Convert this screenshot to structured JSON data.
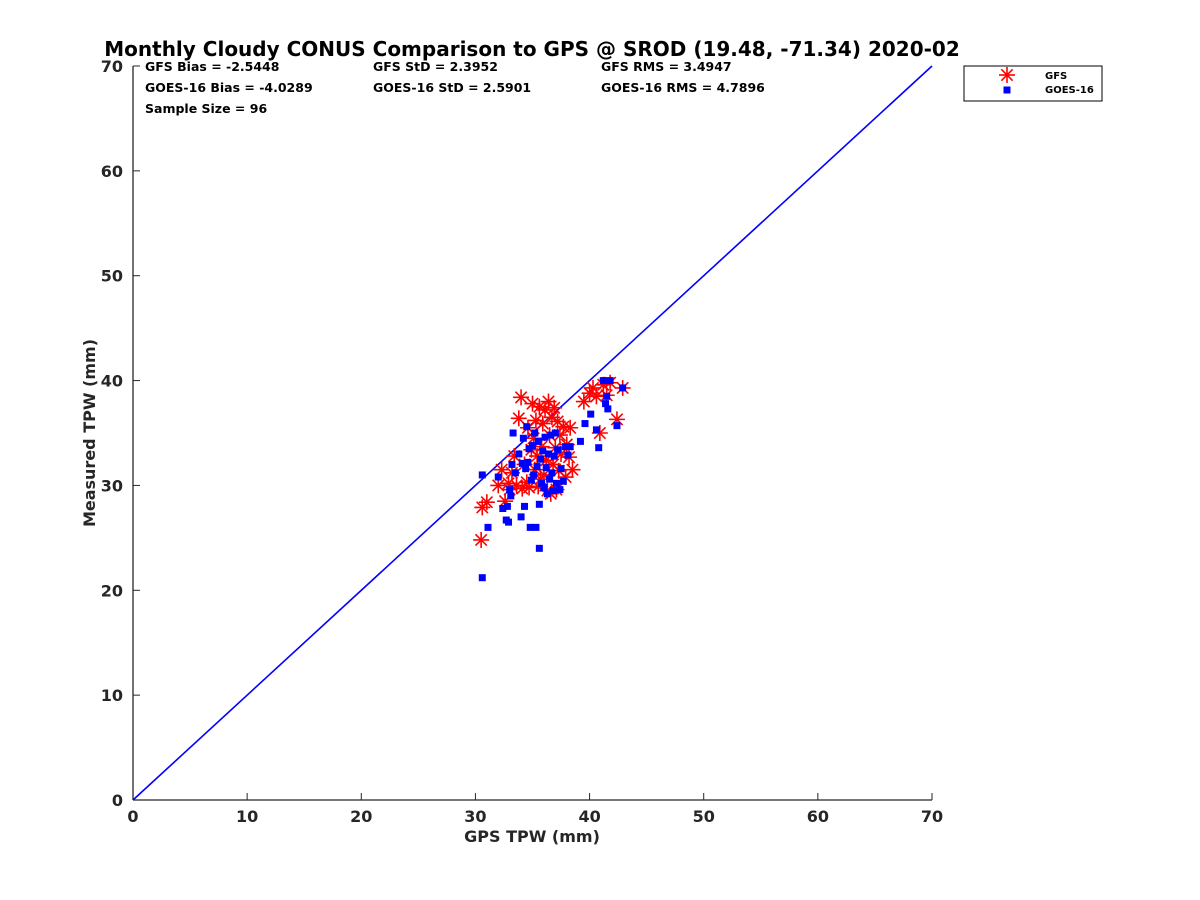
{
  "chart_data": {
    "type": "scatter",
    "title": "Monthly Cloudy CONUS Comparison to GPS @ SROD (19.48, -71.34) 2020-02",
    "xlabel": "GPS TPW (mm)",
    "ylabel": "Measured TPW (mm)",
    "xlim": [
      0,
      70
    ],
    "ylim": [
      0,
      70
    ],
    "xticks": [
      0,
      10,
      20,
      30,
      40,
      50,
      60,
      70
    ],
    "yticks": [
      0,
      10,
      20,
      30,
      40,
      50,
      60,
      70
    ],
    "grid": false,
    "legend_position": "outside-top-right",
    "stats": [
      [
        "GFS Bias = -2.5448",
        "GFS StD = 2.3952",
        "GFS RMS = 3.4947"
      ],
      [
        "GOES-16 Bias = -4.0289",
        "GOES-16 StD = 2.5901",
        "GOES-16 RMS = 4.7896"
      ],
      [
        "Sample Size = 96"
      ]
    ],
    "reference_line": {
      "x": [
        0,
        70
      ],
      "y": [
        0,
        70
      ],
      "color": "#0000ff"
    },
    "series": [
      {
        "name": "GFS",
        "marker": "asterisk",
        "color": "#ff0000",
        "points": [
          [
            30.5,
            24.8
          ],
          [
            30.6,
            27.9
          ],
          [
            31.0,
            28.4
          ],
          [
            32.0,
            30.0
          ],
          [
            32.3,
            31.5
          ],
          [
            32.6,
            28.5
          ],
          [
            32.9,
            30.2
          ],
          [
            33.0,
            29.6
          ],
          [
            33.2,
            31.2
          ],
          [
            33.4,
            32.8
          ],
          [
            33.6,
            30.0
          ],
          [
            33.8,
            36.4
          ],
          [
            34.0,
            38.4
          ],
          [
            34.1,
            29.7
          ],
          [
            34.3,
            32.0
          ],
          [
            34.5,
            30.3
          ],
          [
            34.6,
            35.5
          ],
          [
            34.7,
            29.8
          ],
          [
            34.9,
            33.4
          ],
          [
            35.0,
            37.8
          ],
          [
            35.1,
            34.5
          ],
          [
            35.2,
            31.5
          ],
          [
            35.3,
            36.2
          ],
          [
            35.4,
            32.8
          ],
          [
            35.5,
            29.9
          ],
          [
            35.6,
            37.5
          ],
          [
            35.7,
            30.6
          ],
          [
            35.8,
            33.7
          ],
          [
            35.9,
            35.9
          ],
          [
            36.0,
            31.0
          ],
          [
            36.1,
            37.2
          ],
          [
            36.2,
            32.4
          ],
          [
            36.3,
            29.5
          ],
          [
            36.4,
            38.0
          ],
          [
            36.5,
            34.8
          ],
          [
            36.6,
            29.2
          ],
          [
            36.7,
            36.5
          ],
          [
            36.8,
            32.0
          ],
          [
            36.9,
            37.4
          ],
          [
            37.0,
            33.6
          ],
          [
            37.1,
            29.6
          ],
          [
            37.2,
            36.1
          ],
          [
            37.3,
            31.4
          ],
          [
            37.4,
            34.8
          ],
          [
            37.5,
            33.0
          ],
          [
            37.7,
            35.6
          ],
          [
            37.9,
            30.8
          ],
          [
            38.0,
            33.9
          ],
          [
            38.2,
            32.7
          ],
          [
            38.3,
            35.5
          ],
          [
            38.5,
            31.5
          ],
          [
            39.5,
            38.0
          ],
          [
            40.0,
            38.8
          ],
          [
            40.3,
            39.3
          ],
          [
            40.6,
            38.5
          ],
          [
            40.9,
            35.0
          ],
          [
            41.2,
            39.6
          ],
          [
            41.5,
            38.6
          ],
          [
            41.8,
            39.8
          ],
          [
            42.4,
            36.3
          ],
          [
            42.9,
            39.3
          ]
        ]
      },
      {
        "name": "GOES-16",
        "marker": "square",
        "color": "#0000ff",
        "points": [
          [
            30.6,
            21.2
          ],
          [
            30.6,
            31.0
          ],
          [
            31.1,
            26.0
          ],
          [
            32.0,
            30.8
          ],
          [
            32.4,
            27.8
          ],
          [
            32.7,
            26.7
          ],
          [
            32.8,
            28.0
          ],
          [
            32.9,
            26.5
          ],
          [
            33.0,
            29.6
          ],
          [
            33.1,
            29.0
          ],
          [
            33.2,
            32.0
          ],
          [
            33.3,
            35.0
          ],
          [
            33.5,
            31.2
          ],
          [
            33.8,
            33.0
          ],
          [
            34.0,
            27.0
          ],
          [
            34.1,
            32.1
          ],
          [
            34.2,
            34.5
          ],
          [
            34.3,
            28.0
          ],
          [
            34.4,
            31.6
          ],
          [
            34.5,
            35.6
          ],
          [
            34.6,
            32.2
          ],
          [
            34.7,
            33.5
          ],
          [
            34.8,
            26.0
          ],
          [
            34.9,
            30.5
          ],
          [
            35.0,
            33.8
          ],
          [
            35.1,
            31.0
          ],
          [
            35.2,
            35.0
          ],
          [
            35.3,
            26.0
          ],
          [
            35.4,
            31.8
          ],
          [
            35.5,
            34.2
          ],
          [
            35.6,
            28.2
          ],
          [
            35.6,
            24.0
          ],
          [
            35.7,
            32.5
          ],
          [
            35.8,
            30.2
          ],
          [
            35.9,
            33.3
          ],
          [
            36.0,
            29.8
          ],
          [
            36.1,
            34.6
          ],
          [
            36.2,
            31.7
          ],
          [
            36.3,
            29.2
          ],
          [
            36.4,
            33.0
          ],
          [
            36.5,
            30.6
          ],
          [
            36.6,
            34.8
          ],
          [
            36.7,
            31.2
          ],
          [
            36.8,
            29.5
          ],
          [
            36.9,
            32.8
          ],
          [
            37.0,
            35.0
          ],
          [
            37.1,
            30.2
          ],
          [
            37.2,
            33.4
          ],
          [
            37.4,
            29.6
          ],
          [
            37.5,
            31.6
          ],
          [
            37.7,
            30.4
          ],
          [
            37.9,
            33.7
          ],
          [
            38.1,
            32.9
          ],
          [
            38.3,
            33.7
          ],
          [
            39.2,
            34.2
          ],
          [
            39.6,
            35.9
          ],
          [
            40.1,
            36.8
          ],
          [
            40.6,
            35.3
          ],
          [
            40.8,
            33.6
          ],
          [
            41.2,
            40.0
          ],
          [
            41.4,
            37.8
          ],
          [
            41.5,
            38.5
          ],
          [
            41.6,
            37.3
          ],
          [
            41.8,
            40.0
          ],
          [
            42.4,
            35.7
          ],
          [
            42.9,
            39.3
          ]
        ]
      }
    ]
  }
}
